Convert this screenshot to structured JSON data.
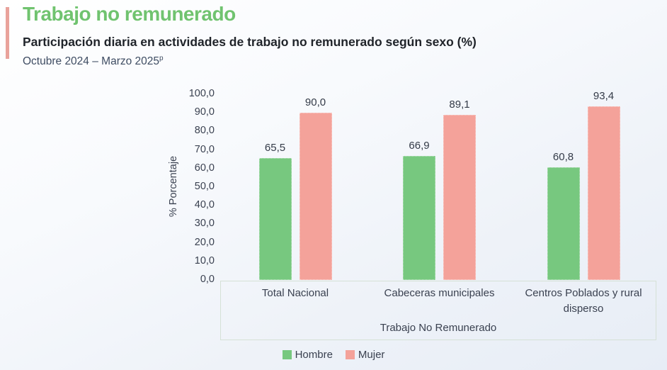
{
  "header": {
    "title": "Trabajo no remunerado",
    "subtitle": "Participación diaria en actividades de trabajo no remunerado según sexo (%)",
    "period_main": "Octubre 2024 – Marzo 2025",
    "period_superscript": "p"
  },
  "chart_data": {
    "type": "bar",
    "title": "Participación diaria en actividades de trabajo no remunerado según sexo (%)",
    "categories": [
      "Total Nacional",
      "Cabeceras municipales",
      "Centros Poblados y rural disperso"
    ],
    "series": [
      {
        "name": "Hombre",
        "color": "#77c87f",
        "values": [
          65.5,
          66.9,
          60.8
        ]
      },
      {
        "name": "Mujer",
        "color": "#f4a29a",
        "values": [
          90.0,
          89.1,
          93.4
        ]
      }
    ],
    "value_labels": [
      [
        "65,5",
        "66,9",
        "60,8"
      ],
      [
        "90,0",
        "89,1",
        "93,4"
      ]
    ],
    "xlabel": "Trabajo No Remunerado",
    "ylabel": "% Porcentaje",
    "ylim": [
      0,
      100
    ],
    "ytick_step": 10,
    "ytick_labels": [
      "0,0",
      "10,0",
      "20,0",
      "30,0",
      "40,0",
      "50,0",
      "60,0",
      "70,0",
      "80,0",
      "90,0",
      "100,0"
    ],
    "grid": false,
    "legend_position": "bottom",
    "decimal_separator": ","
  },
  "colors": {
    "accent_bar": "#e9a29b",
    "title_green": "#70c36f",
    "bar_hombre": "#77c87f",
    "bar_mujer": "#f4a29a",
    "text_dark": "#3a4150",
    "category_box_border": "#d5e1d6"
  }
}
